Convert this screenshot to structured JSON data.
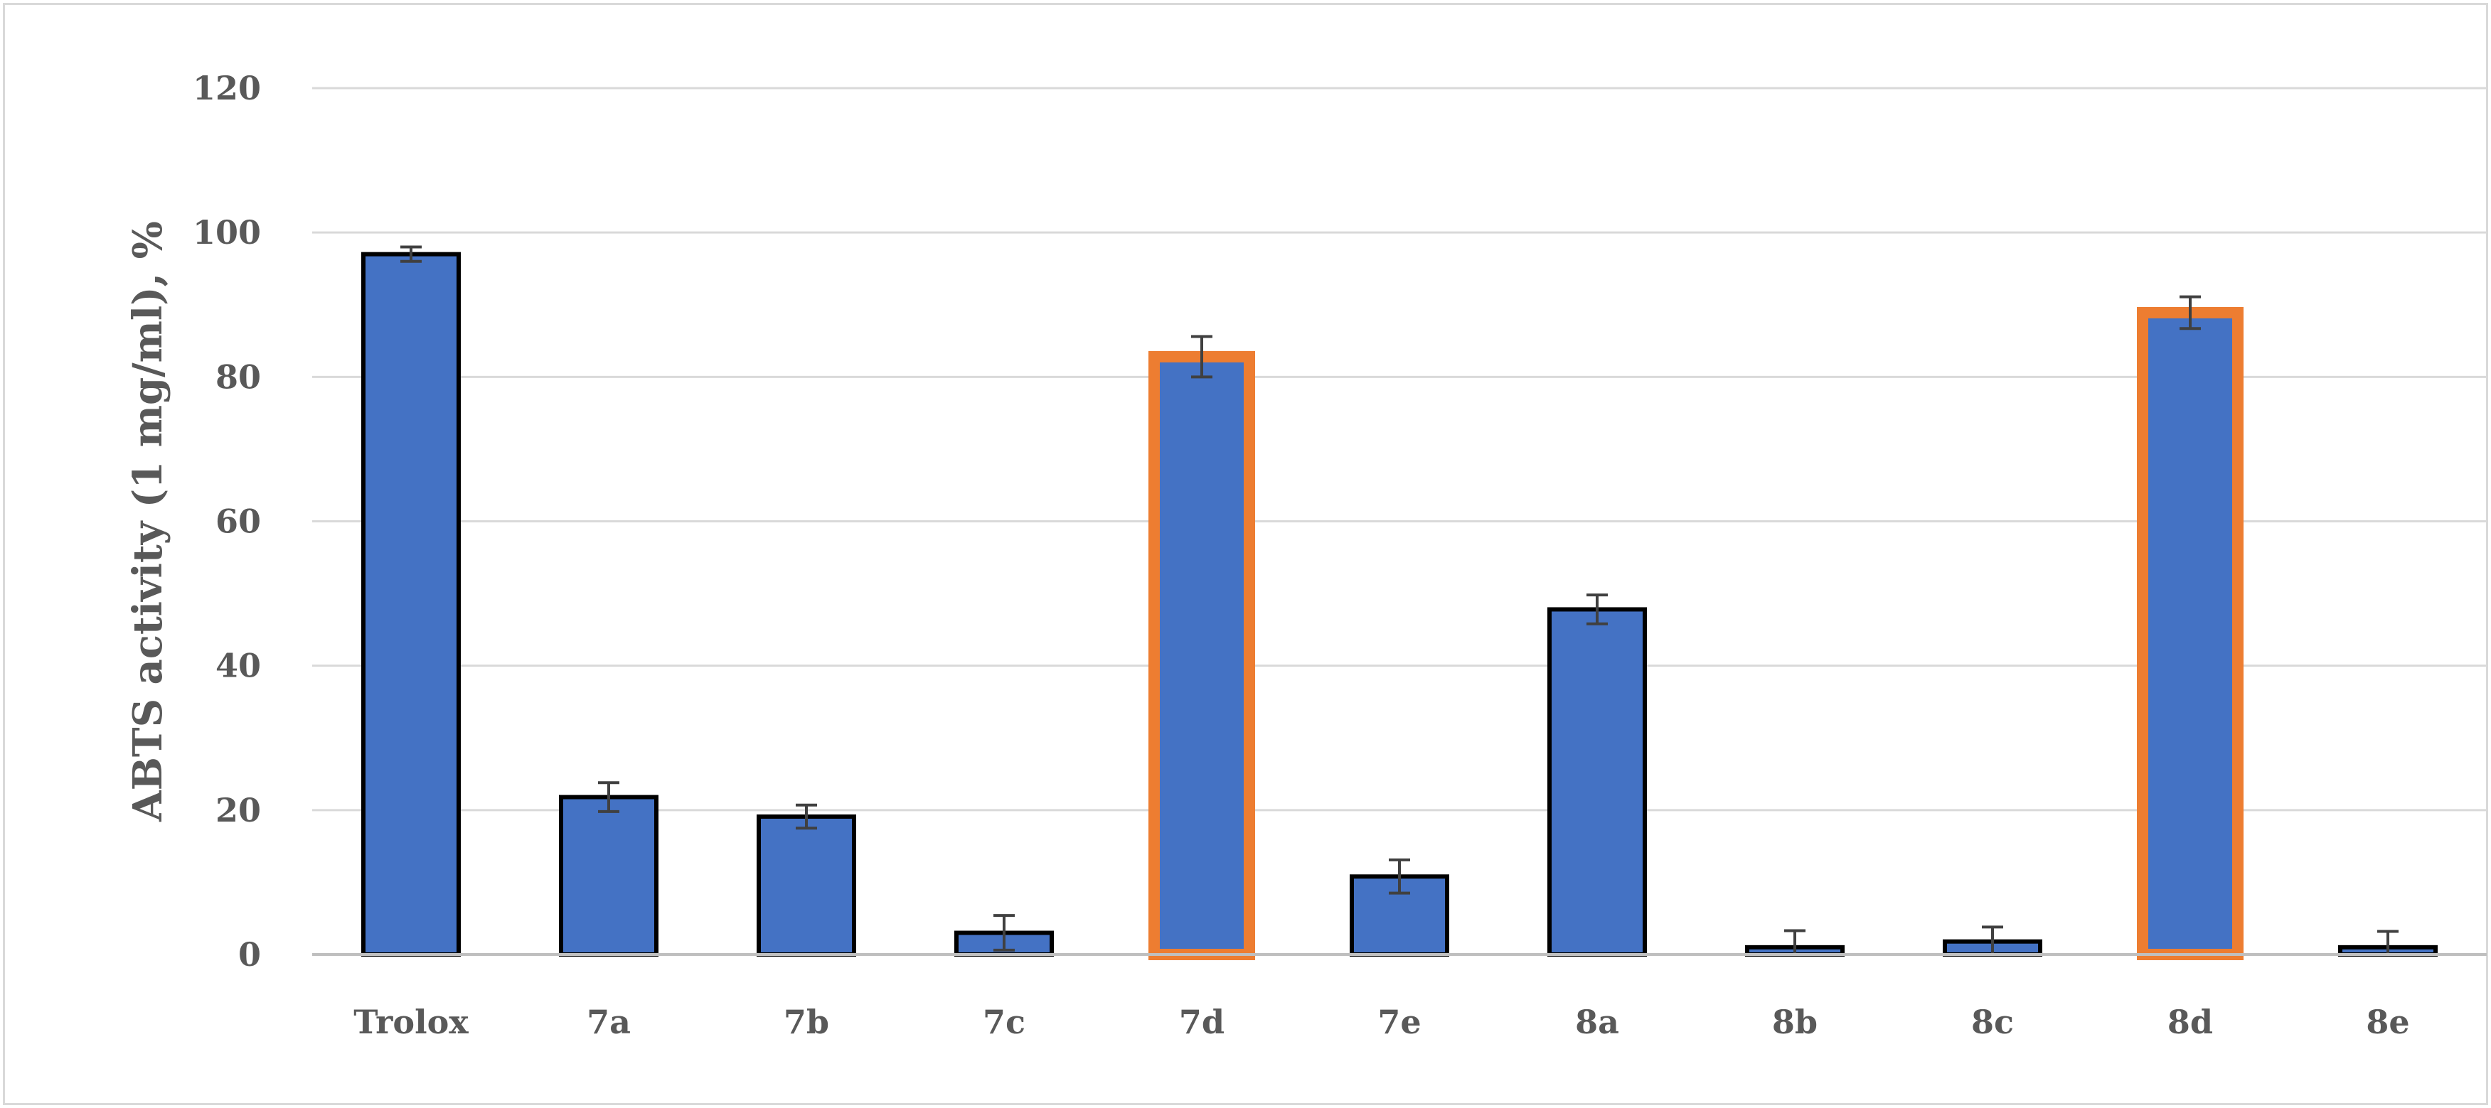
{
  "chart_data": {
    "type": "bar",
    "title": "",
    "xlabel": "",
    "ylabel": "ABTS activity (1 mg/ml), %",
    "ylim": [
      0,
      120
    ],
    "yticks": [
      0,
      20,
      40,
      60,
      80,
      100,
      120
    ],
    "grid": true,
    "categories": [
      "Trolox",
      "7a",
      "7b",
      "7c",
      "7d",
      "7e",
      "8a",
      "8b",
      "8c",
      "8d",
      "8e"
    ],
    "series": [
      {
        "values": [
          97,
          21.8,
          19.1,
          3,
          82.8,
          10.8,
          47.8,
          1,
          1.8,
          88.9,
          1
        ],
        "errors": [
          1,
          2,
          1.6,
          2.4,
          2.8,
          2.3,
          2,
          2.3,
          2,
          2.2,
          2.2
        ]
      }
    ],
    "highlighted": [
      "7d",
      "8d"
    ],
    "colors": {
      "bar_fill": "#4472c4",
      "bar_border": "#000000",
      "highlight_border": "#ed7d31",
      "error_bar": "#404040",
      "grid": "#d9d9d9",
      "axis_line": "#bfbfbf",
      "text": "#595959"
    }
  }
}
